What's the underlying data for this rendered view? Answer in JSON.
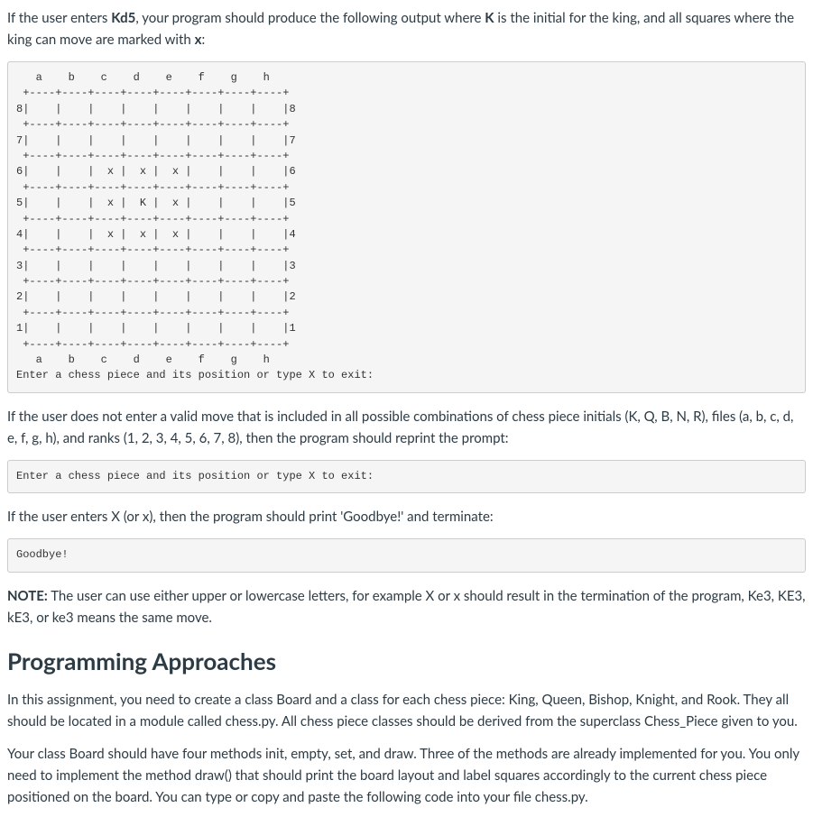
{
  "para_intro_1": "If the user enters ",
  "para_intro_kd5": "Kd5",
  "para_intro_2": ", your program should produce the following output where ",
  "para_intro_k": "K",
  "para_intro_3": " is the initial for the king, and all squares where the king can move are marked with ",
  "para_intro_x": "x",
  "para_intro_4": ":",
  "code_board": "   a    b    c    d    e    f    g    h\n +----+----+----+----+----+----+----+----+\n8|    |    |    |    |    |    |    |    |8\n +----+----+----+----+----+----+----+----+\n7|    |    |    |    |    |    |    |    |7\n +----+----+----+----+----+----+----+----+\n6|    |    |  x |  x |  x |    |    |    |6\n +----+----+----+----+----+----+----+----+\n5|    |    |  x |  K |  x |    |    |    |5\n +----+----+----+----+----+----+----+----+\n4|    |    |  x |  x |  x |    |    |    |4\n +----+----+----+----+----+----+----+----+\n3|    |    |    |    |    |    |    |    |3\n +----+----+----+----+----+----+----+----+\n2|    |    |    |    |    |    |    |    |2\n +----+----+----+----+----+----+----+----+\n1|    |    |    |    |    |    |    |    |1\n +----+----+----+----+----+----+----+----+\n   a    b    c    d    e    f    g    h\nEnter a chess piece and its position or type X to exit:",
  "para_invalid": "If the user does not enter a valid move that is included in all possible combinations of chess piece initials (K, Q, B, N, R), files (a, b, c, d, e, f, g, h), and ranks (1, 2, 3, 4, 5, 6, 7, 8), then the program should reprint the prompt:",
  "code_prompt": "Enter a chess piece and its position or type X to exit:",
  "para_exit": "If the user enters X (or x), then the program should print 'Goodbye!' and terminate:",
  "code_goodbye": "Goodbye!",
  "note_label": "NOTE:",
  "note_text": " The user can use either upper or lowercase letters, for example X or x should result in the termination of the program, Ke3, KE3, kE3, or ke3 means the same move.",
  "heading_approaches": "Programming Approaches",
  "para_classes": "In this assignment, you need to create a class Board and a class for each chess piece: King, Queen, Bishop, Knight, and Rook. They all should be located in a module called chess.py. All chess piece classes should be derived from the superclass Chess_Piece given to you.",
  "para_board_methods": "Your class Board should have four methods init, empty, set, and draw. Three of the methods are already implemented for you. You only need to implement the method draw() that should print the board layout and label squares accordingly to the current chess piece positioned on the board. You can type or copy and paste the following code into your file chess.py."
}
